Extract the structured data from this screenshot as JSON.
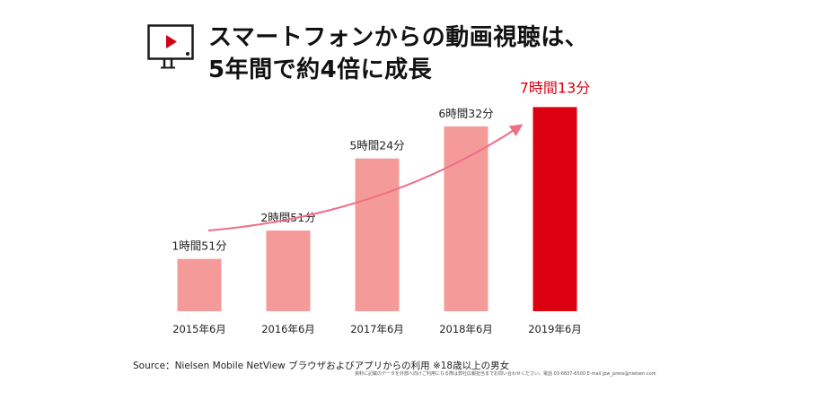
{
  "title": {
    "line1": "スマートフォンからの動画視聴は、",
    "line2": "5年間で約4倍に成長"
  },
  "icon": {
    "name": "video-player-icon",
    "accent": "#d0021b"
  },
  "chart_data": {
    "type": "bar",
    "categories": [
      "2015年6月",
      "2016年6月",
      "2017年6月",
      "2018年6月",
      "2019年6月"
    ],
    "values": [
      111,
      171,
      324,
      392,
      433
    ],
    "data_labels": [
      "1時間51分",
      "2時間51分",
      "5時間24分",
      "6時間32分",
      "7時間13分"
    ],
    "unit": "分",
    "colors": [
      "#f49a98",
      "#f49a98",
      "#f49a98",
      "#f49a98",
      "#dc0011"
    ],
    "highlight_index": 4,
    "highlight_label_color": "#dc0011",
    "trend_arrow": true,
    "trend_color": "#ef6f86",
    "ylim": [
      0,
      470
    ],
    "grid": false,
    "title": "",
    "xlabel": "",
    "ylabel": ""
  },
  "source": "Source：Nielsen Mobile NetView ブラウザおよびアプリからの利用 ※18歳以上の男女",
  "footnote": "資料に記載のデータを外部へ向けご利用になる際は弊社広報担当までお問い合わせください。電話 03-6837-6500 E-mail jpw_press@nielsen.com"
}
